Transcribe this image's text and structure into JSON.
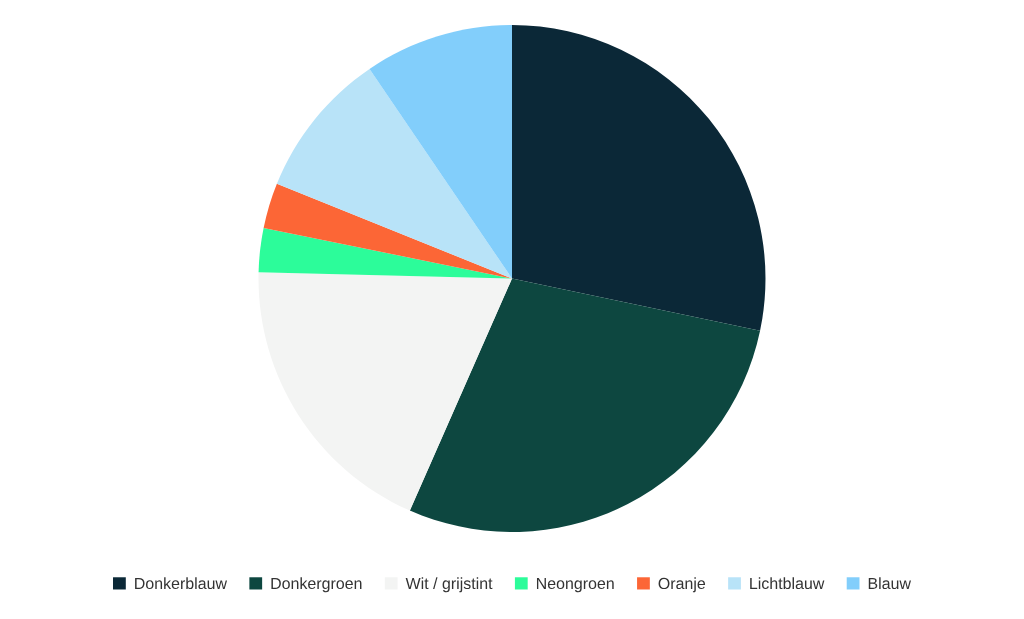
{
  "chart_data": {
    "type": "pie",
    "categories": [
      "Donkerblauw",
      "Donkergroen",
      "Wit / grijstint",
      "Neongroen",
      "Oranje",
      "Lichtblauw",
      "Blauw"
    ],
    "values": [
      28.3,
      28.3,
      18.8,
      2.8,
      2.9,
      9.4,
      9.5
    ],
    "colors": [
      "#0b2837",
      "#0d4740",
      "#f3f4f3",
      "#2cfc9a",
      "#fc6636",
      "#b8e3f8",
      "#82cefb"
    ],
    "legend": "bottom"
  }
}
